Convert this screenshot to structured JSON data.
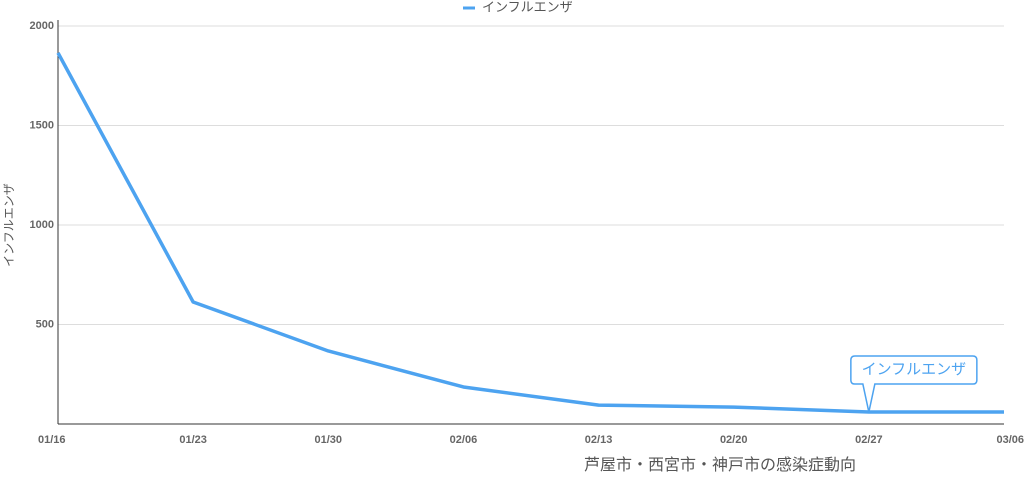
{
  "chart_data": {
    "type": "line",
    "xlabel": "芦屋市・西宮市・神戸市の感染症動向",
    "ylabel": "インフルエンザ",
    "categories": [
      "01/16",
      "01/23",
      "01/30",
      "02/06",
      "02/13",
      "02/20",
      "02/27",
      "03/06"
    ],
    "series": [
      {
        "name": "インフルエンザ",
        "color": "#4da3f0",
        "values": [
          1865,
          613,
          367,
          186,
          95,
          85,
          60,
          60
        ]
      }
    ],
    "ylim": [
      0,
      2000
    ],
    "yticks": [
      500,
      1000,
      1500,
      2000
    ],
    "grid": true,
    "legend": "top",
    "tooltip_index": 6
  }
}
